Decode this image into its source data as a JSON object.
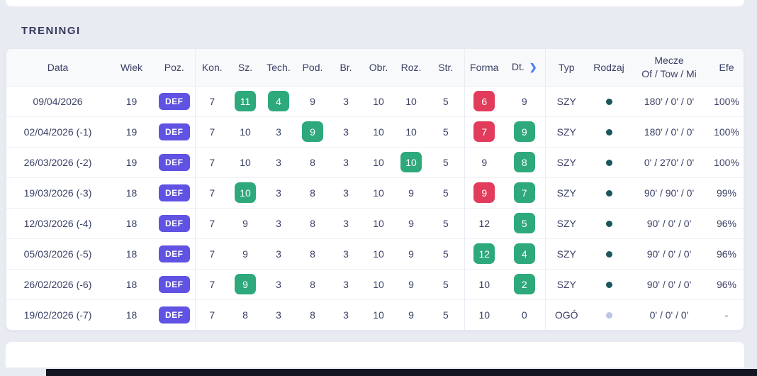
{
  "page": {
    "title": "TRENINGI"
  },
  "colors": {
    "position_badge": "#6052e2",
    "stat_badge_green": "#2da97b",
    "stat_badge_red": "#e23b5b",
    "rodzaj_dot_dark": "#1b565c",
    "rodzaj_dot_light": "#b9c6e4",
    "chevron_blue": "#4a7bf7",
    "page_background": "#e9ebf3"
  },
  "table": {
    "headers": {
      "data": "Data",
      "wiek": "Wiek",
      "poz": "Poz.",
      "kon": "Kon.",
      "sz": "Sz.",
      "tech": "Tech.",
      "pod": "Pod.",
      "br": "Br.",
      "obr": "Obr.",
      "roz": "Roz.",
      "str": "Str.",
      "forma": "Forma",
      "dt": "Dt.",
      "typ": "Typ",
      "rodzaj": "Rodzaj",
      "mecze_line1": "Mecze",
      "mecze_line2": "Of / Tow / Mi",
      "efe": "Efe"
    },
    "rows": [
      {
        "data": "09/04/2026",
        "wiek": "19",
        "poz": "DEF",
        "kon": "7",
        "sz": {
          "v": "11",
          "badge": "green"
        },
        "tech": {
          "v": "4",
          "badge": "green"
        },
        "pod": "9",
        "br": "3",
        "obr": "10",
        "roz": "10",
        "str": "5",
        "forma": {
          "v": "6",
          "badge": "red"
        },
        "dt": "9",
        "typ": "SZY",
        "rodzaj": "dark",
        "mecze": "180' / 0' / 0'",
        "efe": "100%"
      },
      {
        "data": "02/04/2026 (-1)",
        "wiek": "19",
        "poz": "DEF",
        "kon": "7",
        "sz": "10",
        "tech": "3",
        "pod": {
          "v": "9",
          "badge": "green"
        },
        "br": "3",
        "obr": "10",
        "roz": "10",
        "str": "5",
        "forma": {
          "v": "7",
          "badge": "red"
        },
        "dt": {
          "v": "9",
          "badge": "green"
        },
        "typ": "SZY",
        "rodzaj": "dark",
        "mecze": "180' / 0' / 0'",
        "efe": "100%"
      },
      {
        "data": "26/03/2026 (-2)",
        "wiek": "19",
        "poz": "DEF",
        "kon": "7",
        "sz": "10",
        "tech": "3",
        "pod": "8",
        "br": "3",
        "obr": "10",
        "roz": {
          "v": "10",
          "badge": "green"
        },
        "str": "5",
        "forma": "9",
        "dt": {
          "v": "8",
          "badge": "green"
        },
        "typ": "SZY",
        "rodzaj": "dark",
        "mecze": "0' / 270' / 0'",
        "efe": "100%"
      },
      {
        "data": "19/03/2026 (-3)",
        "wiek": "18",
        "poz": "DEF",
        "kon": "7",
        "sz": {
          "v": "10",
          "badge": "green"
        },
        "tech": "3",
        "pod": "8",
        "br": "3",
        "obr": "10",
        "roz": "9",
        "str": "5",
        "forma": {
          "v": "9",
          "badge": "red"
        },
        "dt": {
          "v": "7",
          "badge": "green"
        },
        "typ": "SZY",
        "rodzaj": "dark",
        "mecze": "90' / 90' / 0'",
        "efe": "99%"
      },
      {
        "data": "12/03/2026 (-4)",
        "wiek": "18",
        "poz": "DEF",
        "kon": "7",
        "sz": "9",
        "tech": "3",
        "pod": "8",
        "br": "3",
        "obr": "10",
        "roz": "9",
        "str": "5",
        "forma": "12",
        "dt": {
          "v": "5",
          "badge": "green"
        },
        "typ": "SZY",
        "rodzaj": "dark",
        "mecze": "90' / 0' / 0'",
        "efe": "96%"
      },
      {
        "data": "05/03/2026 (-5)",
        "wiek": "18",
        "poz": "DEF",
        "kon": "7",
        "sz": "9",
        "tech": "3",
        "pod": "8",
        "br": "3",
        "obr": "10",
        "roz": "9",
        "str": "5",
        "forma": {
          "v": "12",
          "badge": "green"
        },
        "dt": {
          "v": "4",
          "badge": "green"
        },
        "typ": "SZY",
        "rodzaj": "dark",
        "mecze": "90' / 0' / 0'",
        "efe": "96%"
      },
      {
        "data": "26/02/2026 (-6)",
        "wiek": "18",
        "poz": "DEF",
        "kon": "7",
        "sz": {
          "v": "9",
          "badge": "green"
        },
        "tech": "3",
        "pod": "8",
        "br": "3",
        "obr": "10",
        "roz": "9",
        "str": "5",
        "forma": "10",
        "dt": {
          "v": "2",
          "badge": "green"
        },
        "typ": "SZY",
        "rodzaj": "dark",
        "mecze": "90' / 0' / 0'",
        "efe": "96%"
      },
      {
        "data": "19/02/2026 (-7)",
        "wiek": "18",
        "poz": "DEF",
        "kon": "7",
        "sz": "8",
        "tech": "3",
        "pod": "8",
        "br": "3",
        "obr": "10",
        "roz": "9",
        "str": "5",
        "forma": "10",
        "dt": "0",
        "typ": "OGÓ",
        "rodzaj": "light",
        "mecze": "0' / 0' / 0'",
        "efe": "-"
      }
    ]
  }
}
